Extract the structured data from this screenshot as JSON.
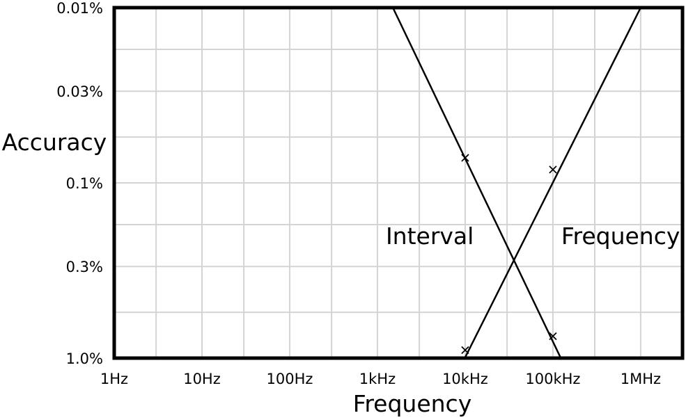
{
  "chart_data": {
    "type": "line",
    "xlabel": "Frequency",
    "ylabel": "Accuracy",
    "x_scale": "log",
    "y_scale": "log",
    "y_inverted": true,
    "xlim": [
      1,
      3000000
    ],
    "ylim": [
      1.0,
      0.01
    ],
    "x_ticks": [
      {
        "value": 1,
        "label": "1Hz"
      },
      {
        "value": 10,
        "label": "10Hz"
      },
      {
        "value": 100,
        "label": "100Hz"
      },
      {
        "value": 1000,
        "label": "1kHz"
      },
      {
        "value": 10000,
        "label": "10kHz"
      },
      {
        "value": 100000,
        "label": "100kHz"
      },
      {
        "value": 1000000,
        "label": "1MHz"
      }
    ],
    "y_ticks": [
      {
        "value": 0.01,
        "label": "0.01%"
      },
      {
        "value": 0.03,
        "label": "0.03%"
      },
      {
        "value": 0.1,
        "label": "0.1%"
      },
      {
        "value": 0.3,
        "label": "0.3%"
      },
      {
        "value": 1.0,
        "label": "1.0%"
      }
    ],
    "x_grid": [
      1,
      3,
      10,
      30,
      100,
      300,
      1000,
      3000,
      10000,
      30000,
      100000,
      300000,
      1000000
    ],
    "y_grid": [
      0.01,
      0.0173,
      0.03,
      0.0548,
      0.1,
      0.173,
      0.3,
      0.548,
      1.0
    ],
    "grid": true,
    "series": [
      {
        "name": "Interval",
        "label_at": {
          "x": 1000,
          "y": 0.2
        },
        "line": [
          {
            "x": 1500,
            "y": 0.01
          },
          {
            "x": 123000,
            "y": 1.0
          }
        ],
        "markers": [
          {
            "x": 10000,
            "y": 0.072
          },
          {
            "x": 100000,
            "y": 0.75
          }
        ]
      },
      {
        "name": "Frequency",
        "label_at": {
          "x": 100000,
          "y": 0.2
        },
        "line": [
          {
            "x": 9900,
            "y": 1.0
          },
          {
            "x": 1000000,
            "y": 0.01
          }
        ],
        "markers": [
          {
            "x": 10000,
            "y": 0.9
          },
          {
            "x": 100000,
            "y": 0.084
          }
        ]
      }
    ]
  }
}
